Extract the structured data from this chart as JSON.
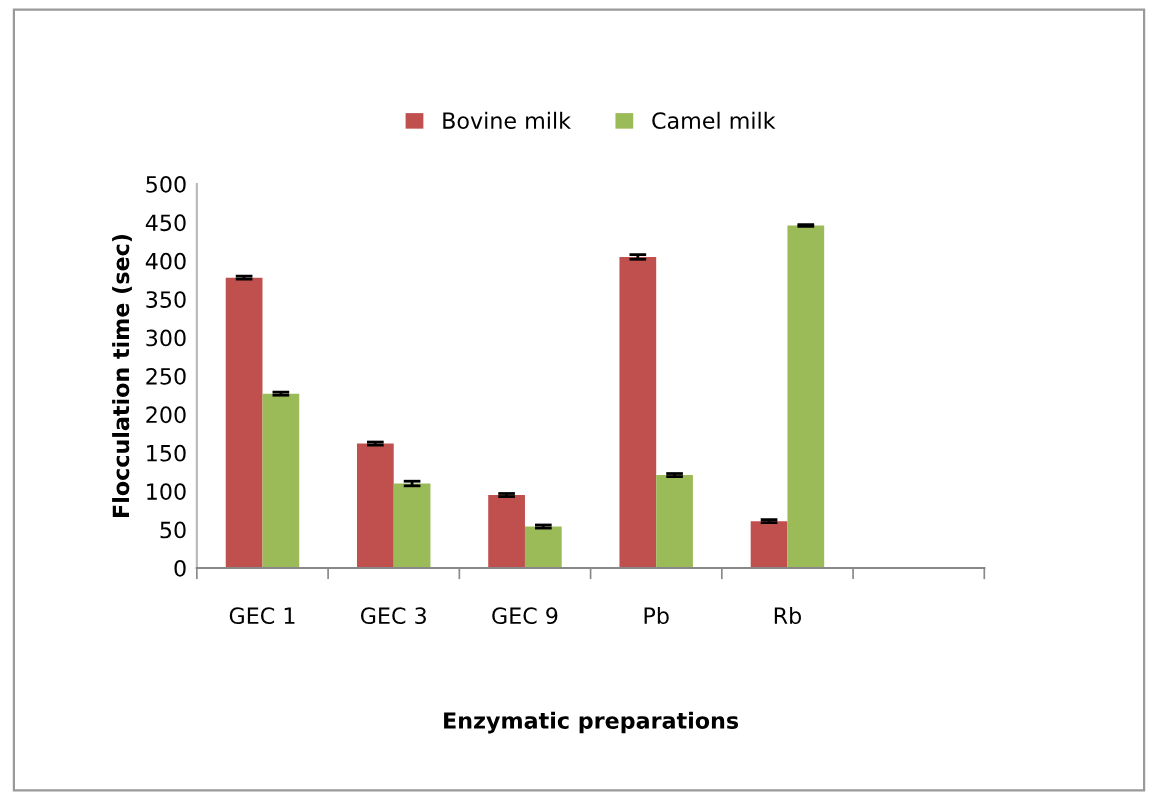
{
  "chart_data": {
    "type": "bar",
    "xlabel": "Enzymatic preparations",
    "ylabel": "Flocculation time (sec)",
    "categories": [
      "GEC 1",
      "GEC 3",
      "GEC 9",
      "Pb",
      "Rb",
      null
    ],
    "series": [
      {
        "name": "Bovine milk",
        "color": "#c0504d",
        "values": [
          378,
          162,
          95,
          405,
          61,
          null
        ],
        "errors": [
          2,
          2,
          2,
          3,
          2,
          null
        ]
      },
      {
        "name": "Camel milk",
        "color": "#9bbb59",
        "values": [
          227,
          110,
          54,
          121,
          446,
          null
        ],
        "errors": [
          2,
          3,
          2,
          2,
          1,
          null
        ]
      }
    ],
    "ylim": [
      0,
      500
    ],
    "yticks": [
      0,
      50,
      100,
      150,
      200,
      250,
      300,
      350,
      400,
      450,
      500
    ],
    "grid": false,
    "legend": "top"
  }
}
